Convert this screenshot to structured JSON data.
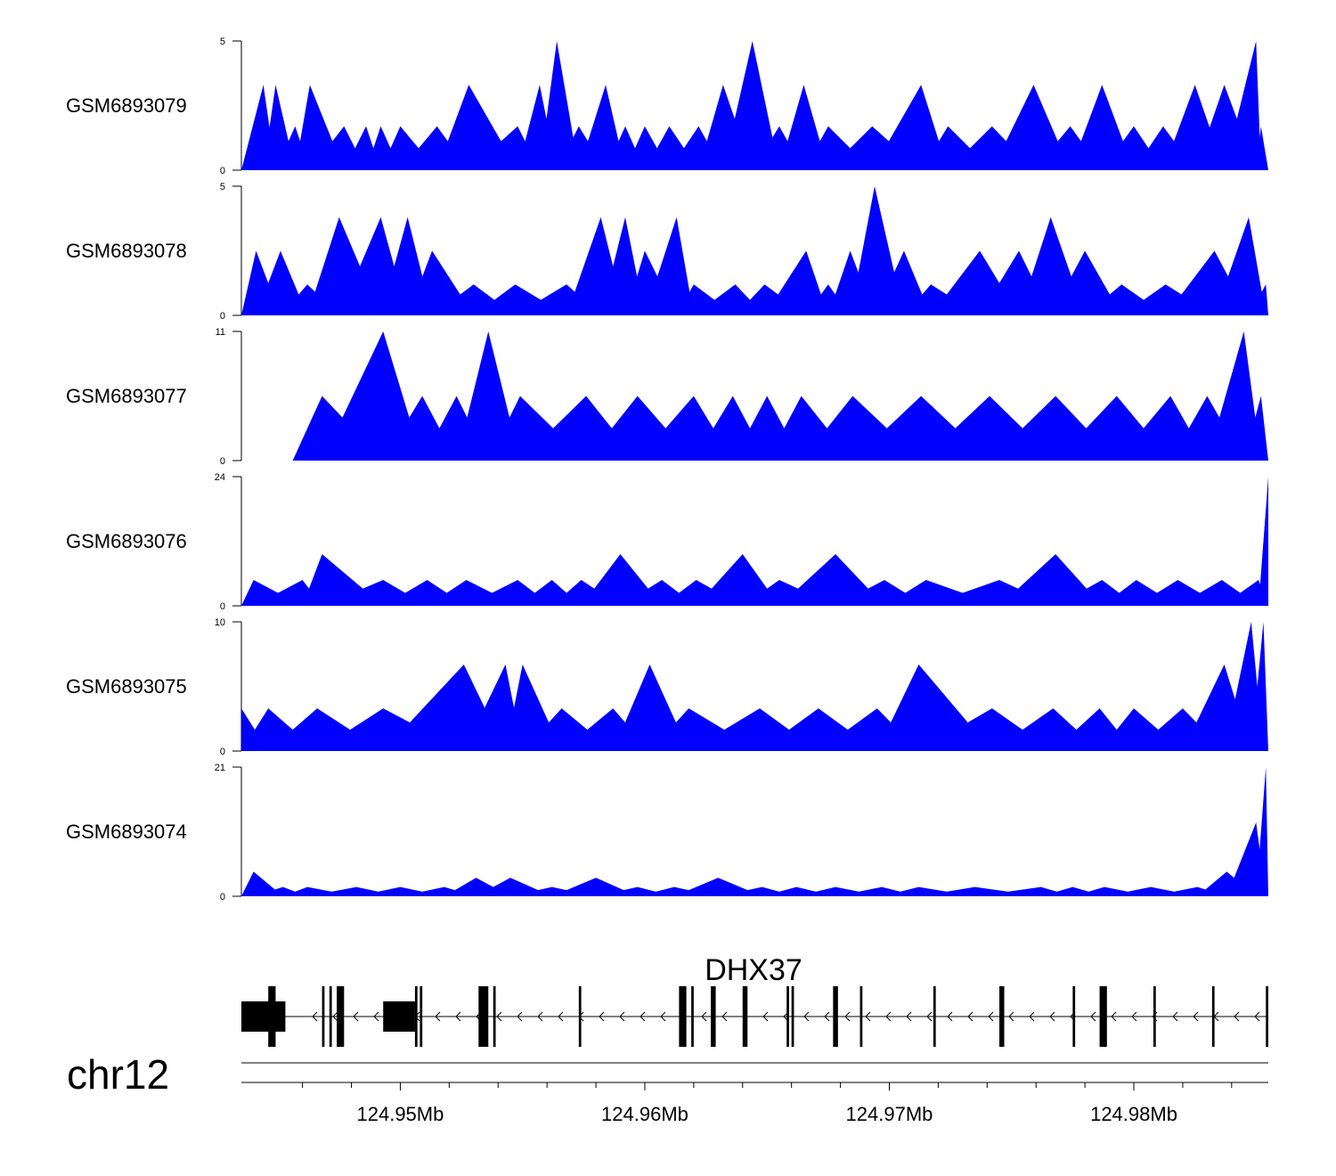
{
  "chart_data": {
    "type": "area",
    "chromosome": "chr12",
    "gene": "DHX37",
    "xlim": [
      124.9435,
      124.9855
    ],
    "xlabel_unit": "Mb",
    "x_tick_labels": [
      "124.95Mb",
      "124.96Mb",
      "124.97Mb",
      "124.98Mb"
    ],
    "x_tick_values": [
      124.95,
      124.96,
      124.97,
      124.98
    ],
    "minor_tick_values": [
      124.946,
      124.948,
      124.952,
      124.954,
      124.956,
      124.958,
      124.962,
      124.964,
      124.966,
      124.968,
      124.972,
      124.974,
      124.976,
      124.978,
      124.982,
      124.984
    ],
    "fill_color": "#0000ff",
    "tracks": [
      {
        "name": "GSM6893079",
        "ylim": [
          0,
          5
        ],
        "ytick_labels": [
          "0",
          "5"
        ],
        "peaks": [
          [
            124.9444,
            3.3
          ],
          [
            124.9449,
            3.3
          ],
          [
            124.9457,
            1.7
          ],
          [
            124.9463,
            3.3
          ],
          [
            124.9477,
            1.7
          ],
          [
            124.9486,
            1.7
          ],
          [
            124.9492,
            1.7
          ],
          [
            124.95,
            1.7
          ],
          [
            124.9515,
            1.7
          ],
          [
            124.9528,
            3.3
          ],
          [
            124.9548,
            1.7
          ],
          [
            124.9557,
            3.3
          ],
          [
            124.9564,
            5
          ],
          [
            124.9573,
            1.7
          ],
          [
            124.9584,
            3.3
          ],
          [
            124.9592,
            1.7
          ],
          [
            124.96,
            1.7
          ],
          [
            124.961,
            1.7
          ],
          [
            124.9622,
            1.7
          ],
          [
            124.9632,
            3.3
          ],
          [
            124.9644,
            5
          ],
          [
            124.9655,
            1.7
          ],
          [
            124.9665,
            3.3
          ],
          [
            124.9675,
            1.7
          ],
          [
            124.9693,
            1.7
          ],
          [
            124.9713,
            3.3
          ],
          [
            124.9724,
            1.7
          ],
          [
            124.9742,
            1.7
          ],
          [
            124.9759,
            3.3
          ],
          [
            124.9774,
            1.7
          ],
          [
            124.9787,
            3.3
          ],
          [
            124.98,
            1.7
          ],
          [
            124.9812,
            1.7
          ],
          [
            124.9825,
            3.3
          ],
          [
            124.9837,
            3.3
          ],
          [
            124.985,
            5
          ],
          [
            124.9852,
            1.7
          ]
        ]
      },
      {
        "name": "GSM6893078",
        "ylim": [
          0,
          5
        ],
        "ytick_labels": [
          "0",
          "5"
        ],
        "peaks": [
          [
            124.9441,
            2.5
          ],
          [
            124.9451,
            2.5
          ],
          [
            124.9462,
            1.2
          ],
          [
            124.9475,
            3.8
          ],
          [
            124.9492,
            3.8
          ],
          [
            124.9503,
            3.8
          ],
          [
            124.9513,
            2.5
          ],
          [
            124.953,
            1.2
          ],
          [
            124.9547,
            1.2
          ],
          [
            124.9568,
            1.2
          ],
          [
            124.9582,
            3.8
          ],
          [
            124.9592,
            3.8
          ],
          [
            124.96,
            2.5
          ],
          [
            124.9613,
            3.8
          ],
          [
            124.962,
            1.2
          ],
          [
            124.9637,
            1.2
          ],
          [
            124.9649,
            1.2
          ],
          [
            124.9666,
            2.5
          ],
          [
            124.9675,
            1.2
          ],
          [
            124.9684,
            2.5
          ],
          [
            124.9694,
            5
          ],
          [
            124.9706,
            2.5
          ],
          [
            124.9717,
            1.2
          ],
          [
            124.9737,
            2.5
          ],
          [
            124.9753,
            2.5
          ],
          [
            124.9766,
            3.8
          ],
          [
            124.978,
            2.5
          ],
          [
            124.9795,
            1.2
          ],
          [
            124.9813,
            1.2
          ],
          [
            124.9833,
            2.5
          ],
          [
            124.9847,
            3.8
          ],
          [
            124.9854,
            1.2
          ]
        ]
      },
      {
        "name": "GSM6893077",
        "ylim": [
          0,
          11
        ],
        "ytick_labels": [
          "0",
          "11"
        ],
        "peaks": [
          [
            124.9468,
            5.5
          ],
          [
            124.9493,
            11
          ],
          [
            124.9509,
            5.5
          ],
          [
            124.9523,
            5.5
          ],
          [
            124.9536,
            11
          ],
          [
            124.9549,
            5.5
          ],
          [
            124.9576,
            5.5
          ],
          [
            124.9597,
            5.5
          ],
          [
            124.962,
            5.5
          ],
          [
            124.9636,
            5.5
          ],
          [
            124.965,
            5.5
          ],
          [
            124.9664,
            5.5
          ],
          [
            124.9685,
            5.5
          ],
          [
            124.9713,
            5.5
          ],
          [
            124.9741,
            5.5
          ],
          [
            124.9768,
            5.5
          ],
          [
            124.9793,
            5.5
          ],
          [
            124.9815,
            5.5
          ],
          [
            124.983,
            5.5
          ],
          [
            124.9845,
            11
          ],
          [
            124.9852,
            5.5
          ]
        ]
      },
      {
        "name": "GSM6893076",
        "ylim": [
          0,
          24
        ],
        "ytick_labels": [
          "0",
          "24"
        ],
        "peaks": [
          [
            124.944,
            4.8
          ],
          [
            124.946,
            4.8
          ],
          [
            124.9468,
            9.6
          ],
          [
            124.9493,
            4.8
          ],
          [
            124.9511,
            4.8
          ],
          [
            124.9527,
            4.8
          ],
          [
            124.9548,
            4.8
          ],
          [
            124.9562,
            4.8
          ],
          [
            124.9574,
            4.8
          ],
          [
            124.959,
            9.6
          ],
          [
            124.9607,
            4.8
          ],
          [
            124.9621,
            4.8
          ],
          [
            124.964,
            9.6
          ],
          [
            124.9655,
            4.8
          ],
          [
            124.9678,
            9.6
          ],
          [
            124.9698,
            4.8
          ],
          [
            124.9715,
            4.8
          ],
          [
            124.9745,
            4.8
          ],
          [
            124.9768,
            9.6
          ],
          [
            124.9787,
            4.8
          ],
          [
            124.9801,
            4.8
          ],
          [
            124.9818,
            4.8
          ],
          [
            124.9836,
            4.8
          ],
          [
            124.9851,
            4.8
          ],
          [
            124.9855,
            24
          ]
        ]
      },
      {
        "name": "GSM6893075",
        "ylim": [
          0,
          10
        ],
        "ytick_labels": [
          "0",
          "10"
        ],
        "peaks": [
          [
            124.9435,
            3.3
          ],
          [
            124.9446,
            3.3
          ],
          [
            124.9466,
            3.3
          ],
          [
            124.9493,
            3.3
          ],
          [
            124.9526,
            6.7
          ],
          [
            124.9543,
            6.7
          ],
          [
            124.955,
            6.7
          ],
          [
            124.9566,
            3.3
          ],
          [
            124.9587,
            3.3
          ],
          [
            124.9602,
            6.7
          ],
          [
            124.9618,
            3.3
          ],
          [
            124.9647,
            3.3
          ],
          [
            124.9671,
            3.3
          ],
          [
            124.9695,
            3.3
          ],
          [
            124.9712,
            6.7
          ],
          [
            124.9742,
            3.3
          ],
          [
            124.9767,
            3.3
          ],
          [
            124.9786,
            3.3
          ],
          [
            124.98,
            3.3
          ],
          [
            124.982,
            3.3
          ],
          [
            124.9837,
            6.7
          ],
          [
            124.9848,
            10
          ],
          [
            124.9853,
            10
          ]
        ]
      },
      {
        "name": "GSM6893074",
        "ylim": [
          0,
          21
        ],
        "ytick_labels": [
          "0",
          "21"
        ],
        "peaks": [
          [
            124.944,
            4
          ],
          [
            124.9452,
            1.5
          ],
          [
            124.9462,
            1.5
          ],
          [
            124.9482,
            1.5
          ],
          [
            124.95,
            1.5
          ],
          [
            124.9518,
            1.5
          ],
          [
            124.9531,
            3
          ],
          [
            124.9545,
            3
          ],
          [
            124.9562,
            1.5
          ],
          [
            124.958,
            3
          ],
          [
            124.9597,
            1.5
          ],
          [
            124.9612,
            1.5
          ],
          [
            124.963,
            3
          ],
          [
            124.9648,
            1.5
          ],
          [
            124.9662,
            1.5
          ],
          [
            124.9678,
            1.5
          ],
          [
            124.9697,
            1.5
          ],
          [
            124.9712,
            1.5
          ],
          [
            124.9735,
            1.5
          ],
          [
            124.9762,
            1.5
          ],
          [
            124.9775,
            1.5
          ],
          [
            124.9788,
            1.5
          ],
          [
            124.9807,
            1.5
          ],
          [
            124.9826,
            1.5
          ],
          [
            124.9838,
            4
          ],
          [
            124.985,
            12
          ],
          [
            124.9854,
            21
          ]
        ]
      }
    ],
    "gene_model": {
      "strand": "-",
      "exons": [
        [
          124.9435,
          124.9453
        ],
        [
          124.9446,
          124.9449
        ],
        [
          124.9468,
          124.9469
        ],
        [
          124.9471,
          124.9472
        ],
        [
          124.9474,
          124.9477
        ],
        [
          124.9493,
          124.9506
        ],
        [
          124.9506,
          124.9507
        ],
        [
          124.9508,
          124.9509
        ],
        [
          124.9532,
          124.9536
        ],
        [
          124.9538,
          124.9539
        ],
        [
          124.9573,
          124.9574
        ],
        [
          124.9614,
          124.9617
        ],
        [
          124.9619,
          124.962
        ],
        [
          124.9627,
          124.9629
        ],
        [
          124.964,
          124.9642
        ],
        [
          124.9658,
          124.9659
        ],
        [
          124.966,
          124.9661
        ],
        [
          124.9677,
          124.9679
        ],
        [
          124.9688,
          124.9689
        ],
        [
          124.9718,
          124.9719
        ],
        [
          124.9745,
          124.9747
        ],
        [
          124.9775,
          124.9776
        ],
        [
          124.9786,
          124.9789
        ],
        [
          124.9808,
          124.9809
        ],
        [
          124.9832,
          124.9833
        ],
        [
          124.9854,
          124.9855
        ]
      ]
    }
  }
}
